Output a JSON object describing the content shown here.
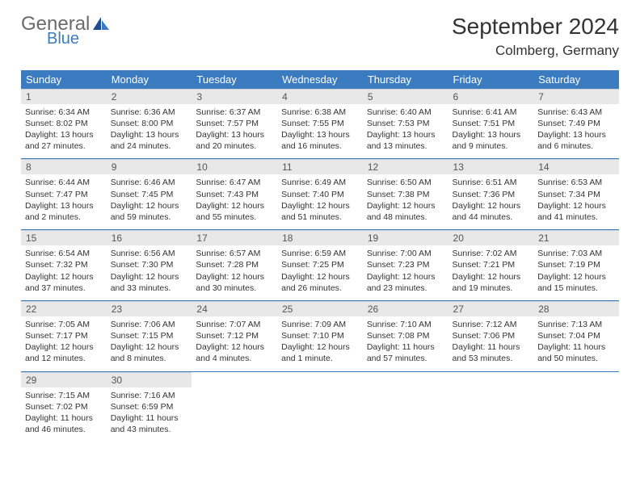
{
  "brand": {
    "word1": "General",
    "word2": "Blue",
    "word1_color": "#6a6a6a",
    "word2_color": "#3b7bbf",
    "icon_color_dark": "#1f4e8c",
    "icon_color_light": "#3b7bbf"
  },
  "title": "September 2024",
  "location": "Colmberg, Germany",
  "theme": {
    "header_bg": "#3b7bbf",
    "header_text": "#ffffff",
    "daynum_bg": "#e8e8e8",
    "sep_color": "#3b7bbf",
    "body_text": "#333333"
  },
  "day_headers": [
    "Sunday",
    "Monday",
    "Tuesday",
    "Wednesday",
    "Thursday",
    "Friday",
    "Saturday"
  ],
  "weeks": [
    [
      {
        "n": "1",
        "sr": "6:34 AM",
        "ss": "8:02 PM",
        "dl": "13 hours and 27 minutes."
      },
      {
        "n": "2",
        "sr": "6:36 AM",
        "ss": "8:00 PM",
        "dl": "13 hours and 24 minutes."
      },
      {
        "n": "3",
        "sr": "6:37 AM",
        "ss": "7:57 PM",
        "dl": "13 hours and 20 minutes."
      },
      {
        "n": "4",
        "sr": "6:38 AM",
        "ss": "7:55 PM",
        "dl": "13 hours and 16 minutes."
      },
      {
        "n": "5",
        "sr": "6:40 AM",
        "ss": "7:53 PM",
        "dl": "13 hours and 13 minutes."
      },
      {
        "n": "6",
        "sr": "6:41 AM",
        "ss": "7:51 PM",
        "dl": "13 hours and 9 minutes."
      },
      {
        "n": "7",
        "sr": "6:43 AM",
        "ss": "7:49 PM",
        "dl": "13 hours and 6 minutes."
      }
    ],
    [
      {
        "n": "8",
        "sr": "6:44 AM",
        "ss": "7:47 PM",
        "dl": "13 hours and 2 minutes."
      },
      {
        "n": "9",
        "sr": "6:46 AM",
        "ss": "7:45 PM",
        "dl": "12 hours and 59 minutes."
      },
      {
        "n": "10",
        "sr": "6:47 AM",
        "ss": "7:43 PM",
        "dl": "12 hours and 55 minutes."
      },
      {
        "n": "11",
        "sr": "6:49 AM",
        "ss": "7:40 PM",
        "dl": "12 hours and 51 minutes."
      },
      {
        "n": "12",
        "sr": "6:50 AM",
        "ss": "7:38 PM",
        "dl": "12 hours and 48 minutes."
      },
      {
        "n": "13",
        "sr": "6:51 AM",
        "ss": "7:36 PM",
        "dl": "12 hours and 44 minutes."
      },
      {
        "n": "14",
        "sr": "6:53 AM",
        "ss": "7:34 PM",
        "dl": "12 hours and 41 minutes."
      }
    ],
    [
      {
        "n": "15",
        "sr": "6:54 AM",
        "ss": "7:32 PM",
        "dl": "12 hours and 37 minutes."
      },
      {
        "n": "16",
        "sr": "6:56 AM",
        "ss": "7:30 PM",
        "dl": "12 hours and 33 minutes."
      },
      {
        "n": "17",
        "sr": "6:57 AM",
        "ss": "7:28 PM",
        "dl": "12 hours and 30 minutes."
      },
      {
        "n": "18",
        "sr": "6:59 AM",
        "ss": "7:25 PM",
        "dl": "12 hours and 26 minutes."
      },
      {
        "n": "19",
        "sr": "7:00 AM",
        "ss": "7:23 PM",
        "dl": "12 hours and 23 minutes."
      },
      {
        "n": "20",
        "sr": "7:02 AM",
        "ss": "7:21 PM",
        "dl": "12 hours and 19 minutes."
      },
      {
        "n": "21",
        "sr": "7:03 AM",
        "ss": "7:19 PM",
        "dl": "12 hours and 15 minutes."
      }
    ],
    [
      {
        "n": "22",
        "sr": "7:05 AM",
        "ss": "7:17 PM",
        "dl": "12 hours and 12 minutes."
      },
      {
        "n": "23",
        "sr": "7:06 AM",
        "ss": "7:15 PM",
        "dl": "12 hours and 8 minutes."
      },
      {
        "n": "24",
        "sr": "7:07 AM",
        "ss": "7:12 PM",
        "dl": "12 hours and 4 minutes."
      },
      {
        "n": "25",
        "sr": "7:09 AM",
        "ss": "7:10 PM",
        "dl": "12 hours and 1 minute."
      },
      {
        "n": "26",
        "sr": "7:10 AM",
        "ss": "7:08 PM",
        "dl": "11 hours and 57 minutes."
      },
      {
        "n": "27",
        "sr": "7:12 AM",
        "ss": "7:06 PM",
        "dl": "11 hours and 53 minutes."
      },
      {
        "n": "28",
        "sr": "7:13 AM",
        "ss": "7:04 PM",
        "dl": "11 hours and 50 minutes."
      }
    ],
    [
      {
        "n": "29",
        "sr": "7:15 AM",
        "ss": "7:02 PM",
        "dl": "11 hours and 46 minutes."
      },
      {
        "n": "30",
        "sr": "7:16 AM",
        "ss": "6:59 PM",
        "dl": "11 hours and 43 minutes."
      },
      null,
      null,
      null,
      null,
      null
    ]
  ],
  "labels": {
    "sunrise": "Sunrise:",
    "sunset": "Sunset:",
    "daylight": "Daylight:"
  }
}
